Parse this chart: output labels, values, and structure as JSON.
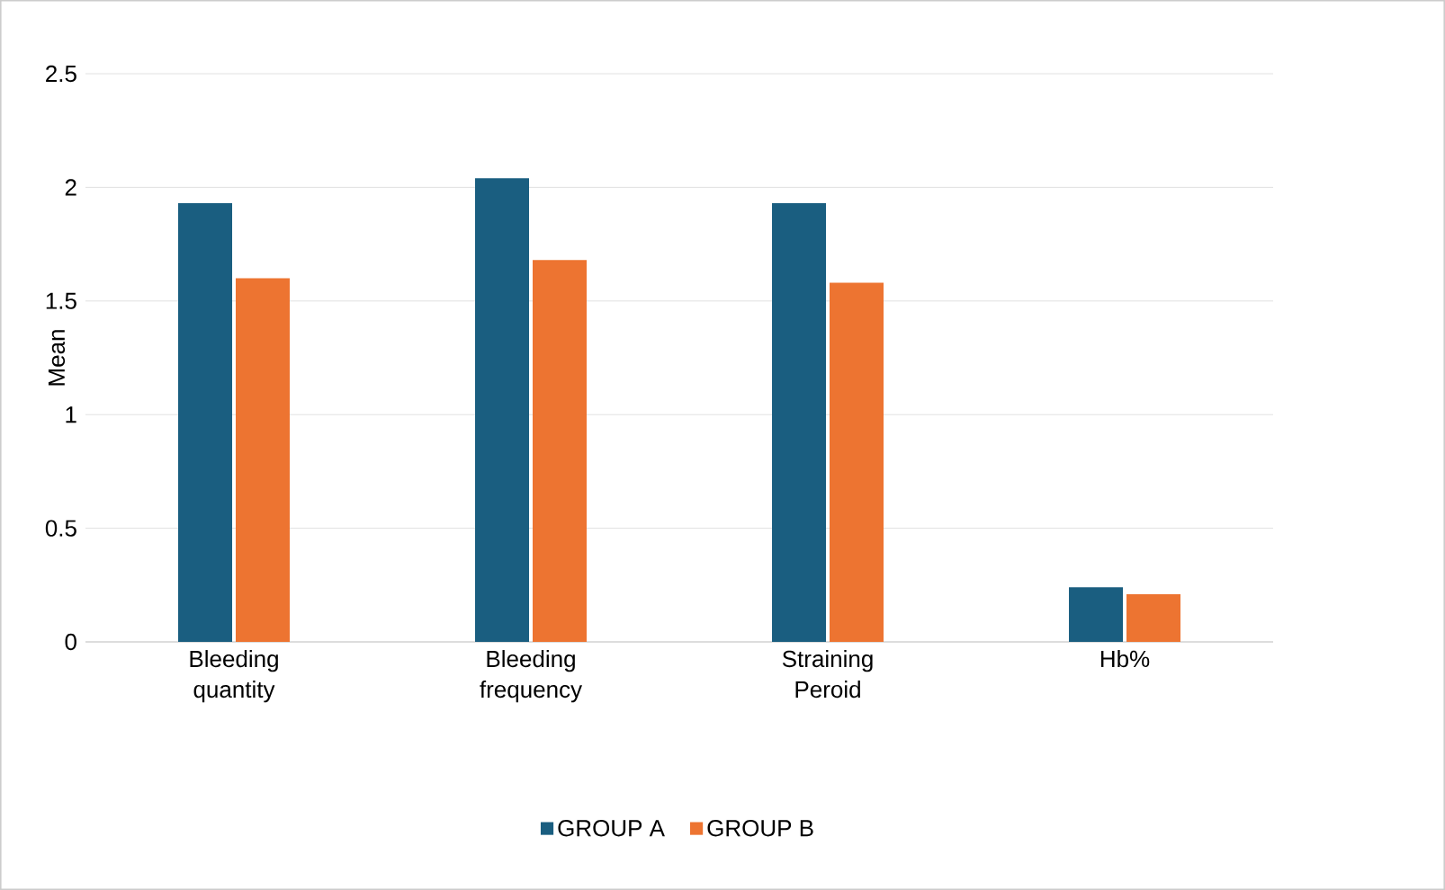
{
  "chart_data": {
    "type": "bar",
    "ylabel": "Mean",
    "categories": [
      "Bleeding quantity",
      "Bleeding frequency",
      "Straining Peroid",
      "Hb%"
    ],
    "series": [
      {
        "name": "GROUP A",
        "color": "#1a5e80",
        "values": [
          1.93,
          2.04,
          1.93,
          0.24
        ]
      },
      {
        "name": "GROUP B",
        "color": "#ed7431",
        "values": [
          1.6,
          1.68,
          1.58,
          0.21
        ]
      }
    ],
    "ylim": [
      0,
      2.5
    ],
    "yticks": [
      0,
      0.5,
      1,
      1.5,
      2,
      2.5
    ],
    "grid": "y",
    "legend": "bottom"
  }
}
